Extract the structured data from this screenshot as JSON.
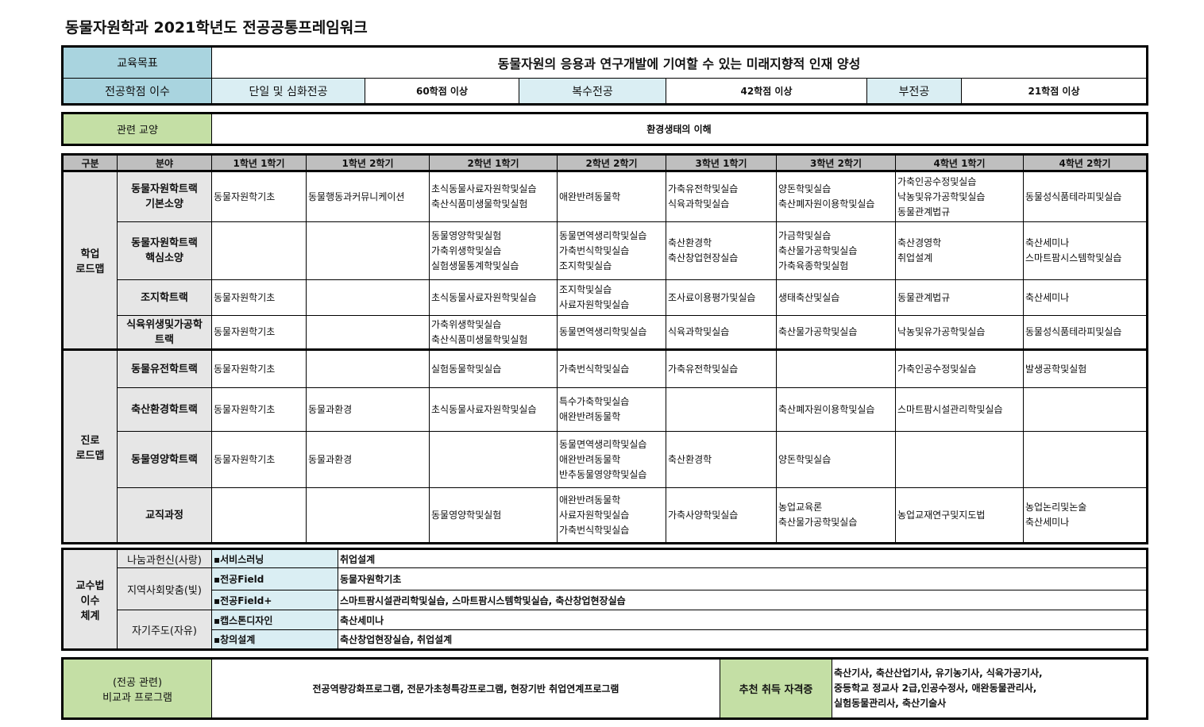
{
  "title": "동물자원학과 2021학년도 전공공통프레임워크",
  "goal": {
    "label": "교육목표",
    "text": "동물자원의 응용과 연구개발에 기여할 수 있는 미래지향적 인재 양성"
  },
  "credits": {
    "label": "전공학점 이수",
    "single_label": "단일 및 심화전공",
    "single_value": "60학점 이상",
    "double_label": "복수전공",
    "double_value": "42학점 이상",
    "minor_label": "부전공",
    "minor_value": "21학점 이상"
  },
  "liberal": {
    "label": "관련 교양",
    "text": "환경생태의 이해"
  },
  "grid": {
    "headers": [
      "구분",
      "분야",
      "1학년 1학기",
      "1학년 2학기",
      "2학년 1학기",
      "2학년 2학기",
      "3학년 1학기",
      "3학년 2학기",
      "4학년 1학기",
      "4학년 2학기"
    ],
    "sections": [
      {
        "label": [
          "학업",
          "로드맵"
        ],
        "rows": [
          {
            "track": [
              "동물자원학트랙",
              "기본소양"
            ],
            "cells": [
              [
                "동물자원학기초"
              ],
              [
                "동물행동과커뮤니케이션"
              ],
              [
                "초식동물사료자원학및실습",
                "축산식품미생물학및실험"
              ],
              [
                "애완반려동물학"
              ],
              [
                "가축유전학및실습",
                "식육과학및실습"
              ],
              [
                "양돈학및실습",
                "축산폐자원이용학및실습"
              ],
              [
                "가축인공수정및실습",
                "낙농및유가공학및실습",
                "동물관계법규"
              ],
              [
                "동물성식품테라피및실습"
              ]
            ]
          },
          {
            "track": [
              "동물자원학트랙",
              "핵심소양"
            ],
            "cells": [
              [],
              [],
              [
                "동물영양학및실험",
                "가축위생학및실습",
                "실험생물통계학및실습"
              ],
              [
                "동물면역생리학및실습",
                "가축번식학및실습",
                "조지학및실습"
              ],
              [
                "축산환경학",
                "축산창업현장실습"
              ],
              [
                "가금학및실습",
                "축산물가공학및실습",
                "가축육종학및실험"
              ],
              [
                "축산경영학",
                "취업설계"
              ],
              [
                "축산세미나",
                "스마트팜시스템학및실습"
              ]
            ]
          },
          {
            "track": [
              "조지학트랙"
            ],
            "cells": [
              [
                "동물자원학기초"
              ],
              [],
              [
                "초식동물사료자원학및실습"
              ],
              [
                "조지학및실습",
                "사료자원학및실습"
              ],
              [
                "조사료이용평가및실습"
              ],
              [
                "생태축산및실습"
              ],
              [
                "동물관계법규"
              ],
              [
                "축산세미나"
              ]
            ]
          },
          {
            "track": [
              "식육위생및가공학",
              "트랙"
            ],
            "cells": [
              [
                "동물자원학기초"
              ],
              [],
              [
                "가축위생학및실습",
                "축산식품미생물학및실험"
              ],
              [
                "동물면역생리학및실습"
              ],
              [
                "식육과학및실습"
              ],
              [
                "축산물가공학및실습"
              ],
              [
                "낙농및유가공학및실습"
              ],
              [
                "동물성식품테라피및실습"
              ]
            ]
          }
        ]
      },
      {
        "label": [
          "진로",
          "로드맵"
        ],
        "rows": [
          {
            "track": [
              "동물유전학트랙"
            ],
            "cells": [
              [
                "동물자원학기초"
              ],
              [],
              [
                "실험동물학및실습"
              ],
              [
                "가축번식학및실습"
              ],
              [
                "가축유전학및실습"
              ],
              [],
              [
                "가축인공수정및실습"
              ],
              [
                "발생공학및실험"
              ]
            ]
          },
          {
            "track": [
              "축산환경학트랙"
            ],
            "cells": [
              [
                "동물자원학기초"
              ],
              [
                "동물과환경"
              ],
              [
                "초식동물사료자원학및실습"
              ],
              [
                "특수가축학및실습",
                "애완반려동물학"
              ],
              [],
              [
                "축산폐자원이용학및실습"
              ],
              [
                "스마트팜시설관리학및실습"
              ],
              []
            ]
          },
          {
            "track": [
              "동물영양학트랙"
            ],
            "cells": [
              [
                "동물자원학기초"
              ],
              [
                "동물과환경"
              ],
              [],
              [
                "동물면역생리학및실습",
                "애완반려동물학",
                "반추동물영양학및실습"
              ],
              [
                "축산환경학"
              ],
              [
                "양돈학및실습"
              ],
              [],
              []
            ]
          },
          {
            "track": [
              "교직과정"
            ],
            "cells": [
              [],
              [],
              [
                "동물영양학및실험"
              ],
              [
                "애완반려동물학",
                "사료자원학및실습",
                "가축번식학및실습"
              ],
              [
                "가축사양학및실습"
              ],
              [
                "농업교육론",
                "축산물가공학및실습"
              ],
              [
                "농업교재연구및지도법"
              ],
              [
                "농업논리및논술",
                "축산세미나"
              ]
            ]
          }
        ]
      }
    ]
  },
  "teaching": {
    "label": [
      "교수법",
      "이수",
      "체계"
    ],
    "groups": [
      {
        "name": "나눔과헌신(사랑)",
        "items": [
          {
            "type": "▪서비스러닝",
            "courses": "취업설계"
          }
        ]
      },
      {
        "name": "지역사회맞춤(빛)",
        "items": [
          {
            "type": "▪전공Field",
            "courses": "동물자원학기초"
          },
          {
            "type": "▪전공Field+",
            "courses": "스마트팜시설관리학및실습, 스마트팜시스템학및실습, 축산창업현장실습"
          }
        ]
      },
      {
        "name": "자기주도(자유)",
        "items": [
          {
            "type": "▪캡스톤디자인",
            "courses": "축산세미나"
          },
          {
            "type": "▪창의설계",
            "courses": "축산창업현장실습, 취업설계"
          }
        ]
      }
    ]
  },
  "extra": {
    "label": [
      "(전공 관련)",
      "비교과 프로그램"
    ],
    "text": "전공역량강화프로그램, 전문가초청특강프로그램, 현장기반 취업연계프로그램",
    "cert_label": "추천 취득 자격증",
    "certs": [
      "축산기사, 축산산업기사, 유기농기사, 식육가공기사,",
      "중등학교 정교사 2급,인공수정사, 애완동물관리사,",
      "실험동물관리사, 축산기술사"
    ]
  },
  "colors": {
    "header_blue": "#a9d4df",
    "light_blue": "#daeef3",
    "green": "#c4dfa5",
    "gray": "#e6e6e6",
    "header_gray": "#bfbfbf"
  }
}
